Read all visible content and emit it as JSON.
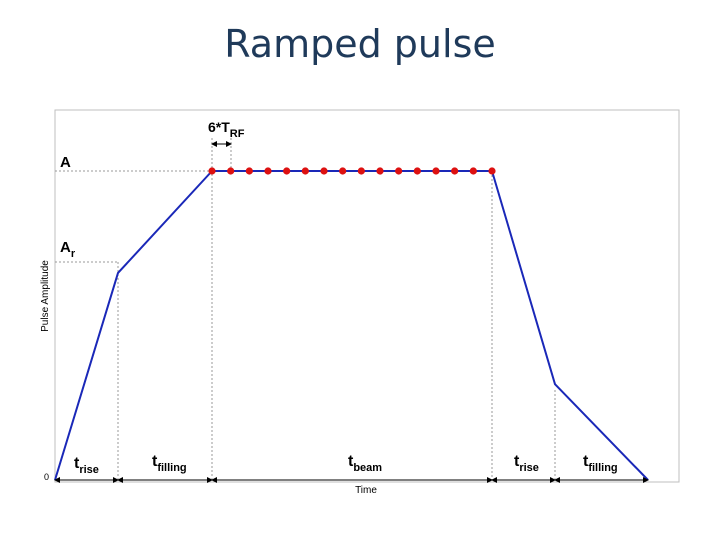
{
  "slide": {
    "title": "Ramped pulse"
  },
  "chart_data": {
    "type": "line",
    "title": "Ramped pulse",
    "xlabel": "Time",
    "ylabel": "Pulse Amplitude",
    "origin_label": "0",
    "y_markers": [
      {
        "main": "A",
        "sub": ""
      },
      {
        "main": "A",
        "sub": "r"
      }
    ],
    "spacing_annotation": {
      "main": "6*T",
      "sub": "RF"
    },
    "phases": [
      {
        "main": "t",
        "sub": "rise"
      },
      {
        "main": "t",
        "sub": "filling"
      },
      {
        "main": "t",
        "sub": "beam"
      },
      {
        "main": "t",
        "sub": "rise"
      },
      {
        "main": "t",
        "sub": "filling"
      }
    ],
    "series": [
      {
        "name": "pulse",
        "color": "#1a28b8",
        "x": [
          0,
          1,
          2,
          3,
          4,
          5
        ],
        "y": [
          0,
          0.67,
          1,
          1,
          0.31,
          0
        ]
      }
    ],
    "markers": {
      "count": 16,
      "color": "#dd1111"
    },
    "colors": {
      "line": "#1a28b8",
      "marker": "#dd1111",
      "guide": "#999999",
      "frame": "#bfbfbf"
    }
  }
}
